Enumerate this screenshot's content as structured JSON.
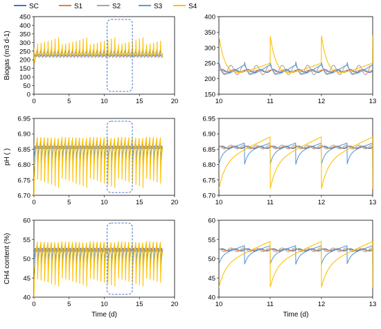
{
  "legend": [
    {
      "name": "SC",
      "color": "#4472C4"
    },
    {
      "name": "S1",
      "color": "#ED7D31"
    },
    {
      "name": "S2",
      "color": "#A5A5A5"
    },
    {
      "name": "S3",
      "color": "#5B9BD5"
    },
    {
      "name": "S4",
      "color": "#FFC000"
    }
  ],
  "chart_data": [
    {
      "type": "line",
      "panel": "biogas-full",
      "ylabel": "Biogas (m3 d-1)",
      "xlabel": "",
      "xlim": [
        0,
        20
      ],
      "ylim": [
        0,
        450
      ],
      "xticks": [
        0,
        5,
        10,
        15,
        20
      ],
      "yticks": [
        0,
        50,
        100,
        150,
        200,
        250,
        300,
        350,
        400,
        450
      ],
      "zoom_window": [
        10.4,
        14
      ],
      "series": [
        {
          "name": "SC",
          "baseline": 225,
          "amplitude": 5,
          "period": 0.5,
          "spike": 0
        },
        {
          "name": "S1",
          "baseline": 225,
          "amplitude": 3,
          "period": 0.5,
          "spike": 0
        },
        {
          "name": "S2",
          "baseline": 228,
          "amplitude": 15,
          "period": 0.5,
          "spike": 0
        },
        {
          "name": "S3",
          "baseline": 230,
          "amplitude": 30,
          "period": 0.5,
          "spike": 60
        },
        {
          "name": "S4",
          "baseline": 225,
          "amplitude": 40,
          "period": 0.5,
          "spike": 150
        }
      ]
    },
    {
      "type": "line",
      "panel": "biogas-zoom",
      "ylabel": "",
      "xlabel": "",
      "xlim": [
        10,
        13
      ],
      "ylim": [
        150,
        400
      ],
      "xticks": [
        10,
        11,
        12,
        13
      ],
      "yticks": [
        150,
        200,
        250,
        300,
        350,
        400
      ],
      "series": [
        {
          "name": "SC",
          "baseline": 225,
          "amplitude": 5,
          "period": 0.25,
          "spike": 0
        },
        {
          "name": "S1",
          "baseline": 225,
          "amplitude": 3,
          "period": 0.25,
          "spike": 0
        },
        {
          "name": "S2",
          "baseline": 228,
          "amplitude": 15,
          "period": 0.25,
          "spike": 0
        },
        {
          "name": "S3",
          "baseline": 220,
          "amplitude": 25,
          "period": 0.5,
          "spike": 60
        },
        {
          "name": "S4",
          "baseline": 220,
          "amplitude": 30,
          "period": 1.0,
          "spike": 150
        }
      ]
    },
    {
      "type": "line",
      "panel": "ph-full",
      "ylabel": "pH ( )",
      "xlabel": "",
      "xlim": [
        0,
        20
      ],
      "ylim": [
        6.7,
        6.95
      ],
      "xticks": [
        0,
        5,
        10,
        15,
        20
      ],
      "yticks": [
        6.7,
        6.75,
        6.8,
        6.85,
        6.9,
        6.95
      ],
      "zoom_window": [
        10.4,
        14
      ],
      "series": [
        {
          "name": "SC",
          "baseline": 6.856,
          "amplitude": 0.004,
          "period": 0.5,
          "spike": 0
        },
        {
          "name": "S1",
          "baseline": 6.856,
          "amplitude": 0.003,
          "period": 0.5,
          "spike": 0
        },
        {
          "name": "S2",
          "baseline": 6.856,
          "amplitude": 0.008,
          "period": 0.5,
          "spike": 0
        },
        {
          "name": "S3",
          "baseline": 6.855,
          "amplitude": 0.02,
          "period": 0.5,
          "spike": -0.04
        },
        {
          "name": "S4",
          "baseline": 6.85,
          "amplitude": 0.04,
          "period": 0.5,
          "spike": -0.09
        }
      ]
    },
    {
      "type": "line",
      "panel": "ph-zoom",
      "ylabel": "",
      "xlabel": "",
      "xlim": [
        10,
        13
      ],
      "ylim": [
        6.7,
        6.95
      ],
      "xticks": [
        10,
        11,
        12,
        13
      ],
      "yticks": [
        6.7,
        6.75,
        6.8,
        6.85,
        6.9,
        6.95
      ],
      "series": [
        {
          "name": "SC",
          "baseline": 6.856,
          "amplitude": 0.004,
          "period": 0.25,
          "spike": 0
        },
        {
          "name": "S1",
          "baseline": 6.856,
          "amplitude": 0.003,
          "period": 0.25,
          "spike": 0
        },
        {
          "name": "S2",
          "baseline": 6.857,
          "amplitude": 0.006,
          "period": 0.25,
          "spike": 0
        },
        {
          "name": "S3",
          "baseline": 6.855,
          "amplitude": 0.015,
          "period": 0.5,
          "spike": -0.04
        },
        {
          "name": "S4",
          "baseline": 6.85,
          "amplitude": 0.04,
          "period": 1.0,
          "spike": -0.09
        }
      ]
    },
    {
      "type": "line",
      "panel": "ch4-full",
      "ylabel": "CH4 content (%)",
      "xlabel": "Time (d)",
      "xlim": [
        0,
        20
      ],
      "ylim": [
        40,
        60
      ],
      "xticks": [
        0,
        5,
        10,
        15,
        20
      ],
      "yticks": [
        40,
        45,
        50,
        55,
        60
      ],
      "zoom_window": [
        10.4,
        14
      ],
      "series": [
        {
          "name": "SC",
          "baseline": 52.3,
          "amplitude": 0.4,
          "period": 0.5,
          "spike": 0
        },
        {
          "name": "S1",
          "baseline": 52.3,
          "amplitude": 0.3,
          "period": 0.5,
          "spike": 0
        },
        {
          "name": "S2",
          "baseline": 52.3,
          "amplitude": 0.7,
          "period": 0.5,
          "spike": 0
        },
        {
          "name": "S3",
          "baseline": 52.2,
          "amplitude": 1.5,
          "period": 0.5,
          "spike": -3
        },
        {
          "name": "S4",
          "baseline": 51.5,
          "amplitude": 3,
          "period": 0.5,
          "spike": -6
        }
      ]
    },
    {
      "type": "line",
      "panel": "ch4-zoom",
      "ylabel": "",
      "xlabel": "Time (d)",
      "xlim": [
        10,
        13
      ],
      "ylim": [
        40,
        60
      ],
      "xticks": [
        10,
        11,
        12,
        13
      ],
      "yticks": [
        40,
        45,
        50,
        55,
        60
      ],
      "series": [
        {
          "name": "SC",
          "baseline": 52.3,
          "amplitude": 0.3,
          "period": 0.25,
          "spike": 0
        },
        {
          "name": "S1",
          "baseline": 52.3,
          "amplitude": 0.2,
          "period": 0.25,
          "spike": 0
        },
        {
          "name": "S2",
          "baseline": 52.3,
          "amplitude": 0.5,
          "period": 0.25,
          "spike": 0
        },
        {
          "name": "S3",
          "baseline": 52.2,
          "amplitude": 1.2,
          "period": 0.5,
          "spike": -2.5
        },
        {
          "name": "S4",
          "baseline": 51.5,
          "amplitude": 3,
          "period": 1.0,
          "spike": -6
        }
      ]
    }
  ]
}
